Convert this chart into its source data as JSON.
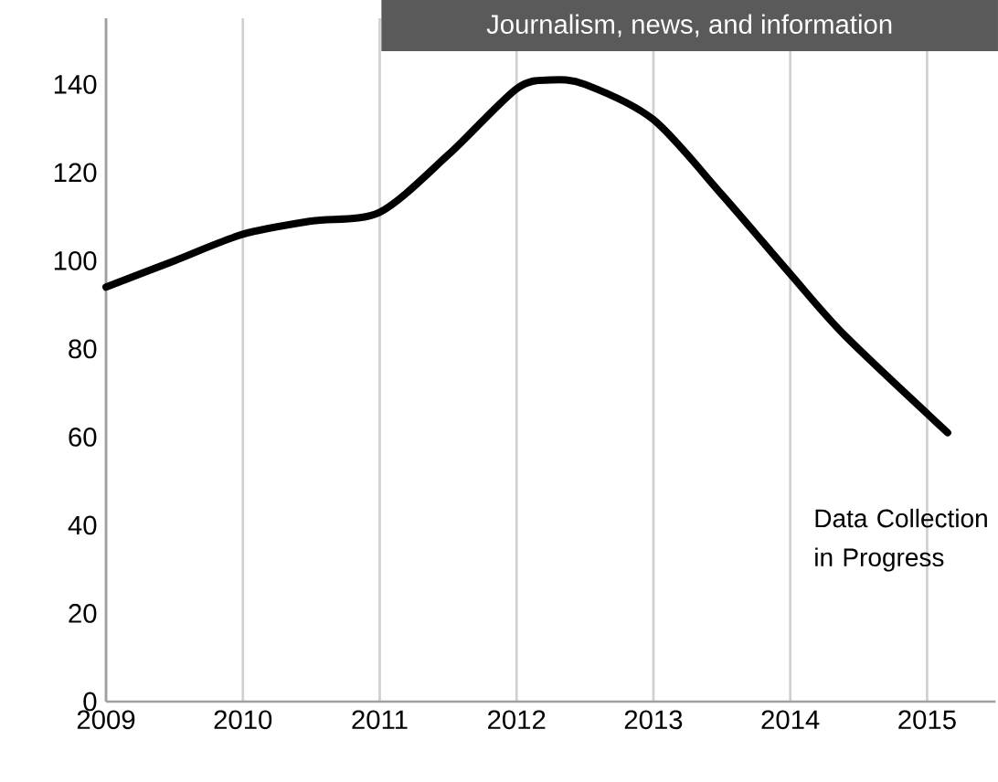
{
  "chart_data": {
    "type": "line",
    "title": "Journalism, news, and information",
    "x": [
      2009,
      2009.5,
      2010,
      2010.5,
      2011,
      2011.5,
      2012,
      2012.25,
      2012.5,
      2013,
      2013.5,
      2014,
      2014.4,
      2015.15
    ],
    "series": [
      {
        "color": "#000000",
        "values": [
          94,
          100,
          106,
          109,
          111,
          124,
          139,
          141,
          140,
          132,
          115,
          97,
          83,
          61
        ]
      }
    ],
    "xlim": [
      2009,
      2015.5
    ],
    "ylim": [
      0,
      155
    ],
    "xticks": [
      2009,
      2010,
      2011,
      2012,
      2013,
      2014,
      2015
    ],
    "yticks": [
      0,
      20,
      40,
      60,
      80,
      100,
      120,
      140
    ],
    "grid": "x",
    "marker": "none",
    "line_style": "solid",
    "annotations": [
      "Data Collection in Progress"
    ]
  }
}
